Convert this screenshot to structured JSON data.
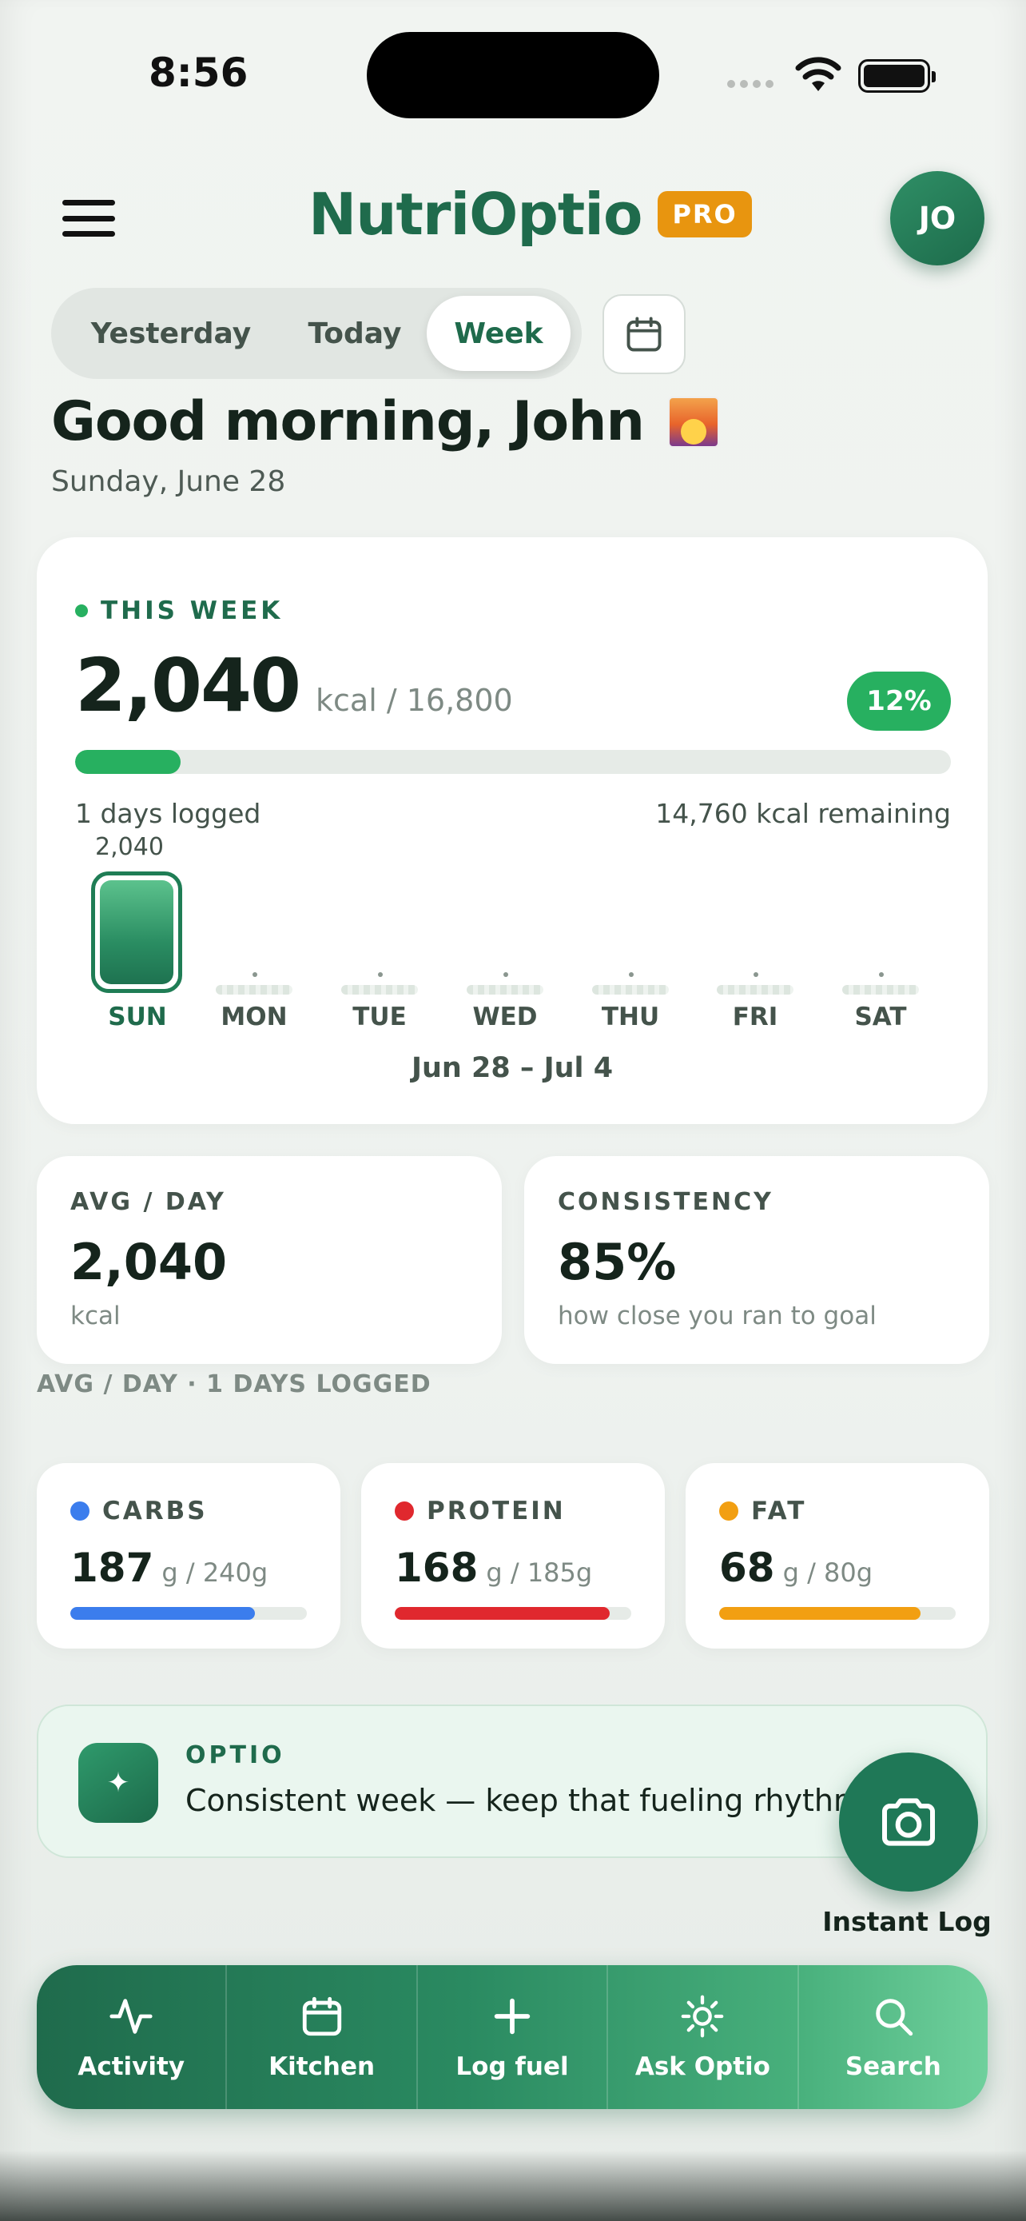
{
  "status": {
    "time": "8:56"
  },
  "header": {
    "brand": "NutriOptio",
    "badge": "PRO",
    "avatar_initials": "JO"
  },
  "tabs": [
    {
      "label": "Yesterday",
      "selected": false
    },
    {
      "label": "Today",
      "selected": false
    },
    {
      "label": "Week",
      "selected": true
    }
  ],
  "greeting": {
    "text": "Good morning, John",
    "date": "Sunday, June 28"
  },
  "week": {
    "label": "THIS WEEK",
    "total": "2,040",
    "unit": "kcal / 16,800",
    "percent": "12%",
    "progress_fraction": 0.12,
    "logged": "1 days logged",
    "remaining": "14,760 kcal remaining",
    "days": [
      {
        "label": "SUN",
        "value": "2,040",
        "logged": true
      },
      {
        "label": "MON",
        "value": "",
        "logged": false
      },
      {
        "label": "TUE",
        "value": "",
        "logged": false
      },
      {
        "label": "WED",
        "value": "",
        "logged": false
      },
      {
        "label": "THU",
        "value": "",
        "logged": false
      },
      {
        "label": "FRI",
        "value": "",
        "logged": false
      },
      {
        "label": "SAT",
        "value": "",
        "logged": false
      }
    ],
    "range": "Jun 28 – Jul 4"
  },
  "stats": {
    "avg": {
      "title": "AVG / DAY",
      "value": "2,040",
      "sub": "kcal"
    },
    "consistency": {
      "title": "CONSISTENCY",
      "value": "85%",
      "sub": "how close you ran to goal"
    },
    "note": "AVG / DAY · 1 DAYS LOGGED"
  },
  "macros": [
    {
      "name": "CARBS",
      "value": "187",
      "unit": "g / 240g",
      "fraction": 0.78,
      "color": "#3b7ded"
    },
    {
      "name": "PROTEIN",
      "value": "168",
      "unit": "g / 185g",
      "fraction": 0.91,
      "color": "#e0282e"
    },
    {
      "name": "FAT",
      "value": "68",
      "unit": "g / 80g",
      "fraction": 0.85,
      "color": "#f29f12"
    }
  ],
  "optio": {
    "title": "OPTIO",
    "message": "Consistent week — keep that fueling rhythm"
  },
  "fab": {
    "label": "Instant Log",
    "icon": "camera-icon"
  },
  "nav": [
    {
      "label": "Activity",
      "icon": "activity-icon"
    },
    {
      "label": "Kitchen",
      "icon": "calendar-icon"
    },
    {
      "label": "Log fuel",
      "icon": "plus-icon"
    },
    {
      "label": "Ask Optio",
      "icon": "sun-icon"
    },
    {
      "label": "Search",
      "icon": "search-icon"
    }
  ]
}
